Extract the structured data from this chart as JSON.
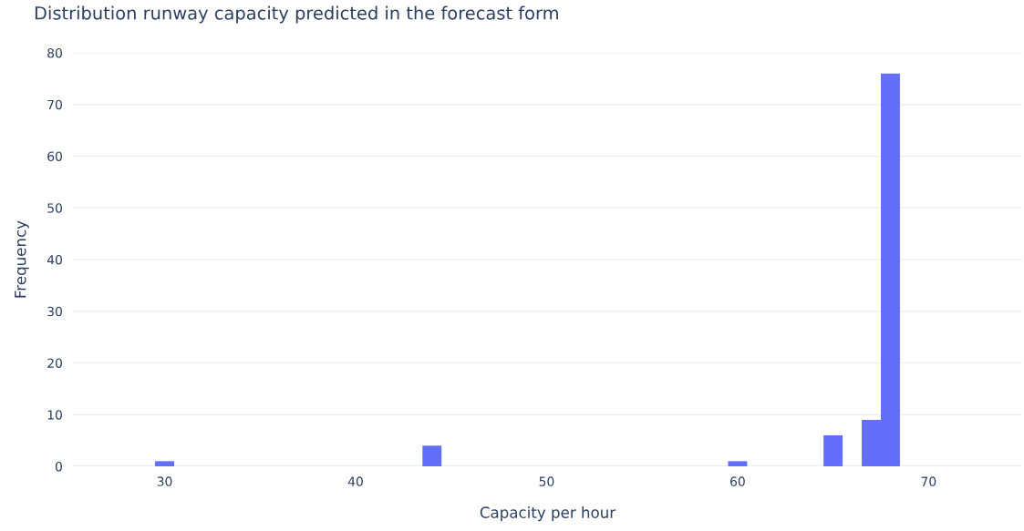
{
  "chart_data": {
    "type": "histogram",
    "title": "Distribution runway capacity predicted in the forecast form",
    "xlabel": "Capacity per hour",
    "ylabel": "Frequency",
    "bins": [
      29.5,
      30.5,
      31.5,
      32.5,
      33.5,
      34.5,
      35.5,
      36.5,
      37.5,
      38.5,
      39.5,
      40.5,
      41.5,
      42.5,
      43.5,
      44.5,
      45.5,
      46.5,
      47.5,
      48.5,
      49.5,
      50.5,
      51.5,
      52.5,
      53.5,
      54.5,
      55.5,
      56.5,
      57.5,
      58.5,
      59.5,
      60.5,
      61.5,
      62.5,
      63.5,
      64.5,
      65.5,
      66.5,
      67.5,
      68.5
    ],
    "values": [
      1,
      0,
      0,
      0,
      0,
      0,
      0,
      0,
      0,
      0,
      0,
      0,
      0,
      0,
      4,
      0,
      0,
      0,
      0,
      0,
      0,
      0,
      0,
      0,
      0,
      0,
      0,
      0,
      0,
      0,
      1,
      0,
      0,
      0,
      0,
      6,
      0,
      9,
      76
    ],
    "color": "#636efa",
    "xlim": [
      25.2,
      74.9
    ],
    "xticks": [
      30,
      40,
      50,
      60,
      70
    ],
    "ylim": [
      0,
      80
    ],
    "yticks": [
      0,
      10,
      20,
      30,
      40,
      50,
      60,
      70,
      80
    ],
    "grid": "y"
  }
}
